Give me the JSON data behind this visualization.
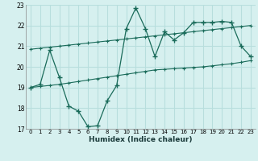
{
  "x": [
    0,
    1,
    2,
    3,
    4,
    5,
    6,
    7,
    8,
    9,
    10,
    11,
    12,
    13,
    14,
    15,
    16,
    17,
    18,
    19,
    20,
    21,
    22,
    23
  ],
  "y_main": [
    19.0,
    19.15,
    20.8,
    19.5,
    18.1,
    17.85,
    17.1,
    17.15,
    18.35,
    19.1,
    21.85,
    22.85,
    21.85,
    20.5,
    21.7,
    21.3,
    21.65,
    22.15,
    22.15,
    22.15,
    22.2,
    22.15,
    21.0,
    20.5
  ],
  "y_upper": [
    20.85,
    20.9,
    20.95,
    21.0,
    21.05,
    21.1,
    21.15,
    21.2,
    21.25,
    21.3,
    21.35,
    21.4,
    21.45,
    21.5,
    21.55,
    21.6,
    21.65,
    21.7,
    21.75,
    21.8,
    21.85,
    21.9,
    21.95,
    22.0
  ],
  "y_lower": [
    19.0,
    19.05,
    19.1,
    19.15,
    19.22,
    19.29,
    19.36,
    19.43,
    19.5,
    19.57,
    19.64,
    19.71,
    19.78,
    19.85,
    19.88,
    19.91,
    19.94,
    19.97,
    20.0,
    20.05,
    20.1,
    20.15,
    20.22,
    20.3
  ],
  "line_color": "#1a6b5a",
  "bg_color": "#d6f0ef",
  "grid_color": "#b8dedd",
  "xlabel": "Humidex (Indice chaleur)",
  "ylim": [
    17,
    23
  ],
  "xlim": [
    -0.5,
    23.5
  ],
  "yticks": [
    17,
    18,
    19,
    20,
    21,
    22,
    23
  ],
  "xticks": [
    0,
    1,
    2,
    3,
    4,
    5,
    6,
    7,
    8,
    9,
    10,
    11,
    12,
    13,
    14,
    15,
    16,
    17,
    18,
    19,
    20,
    21,
    22,
    23
  ]
}
